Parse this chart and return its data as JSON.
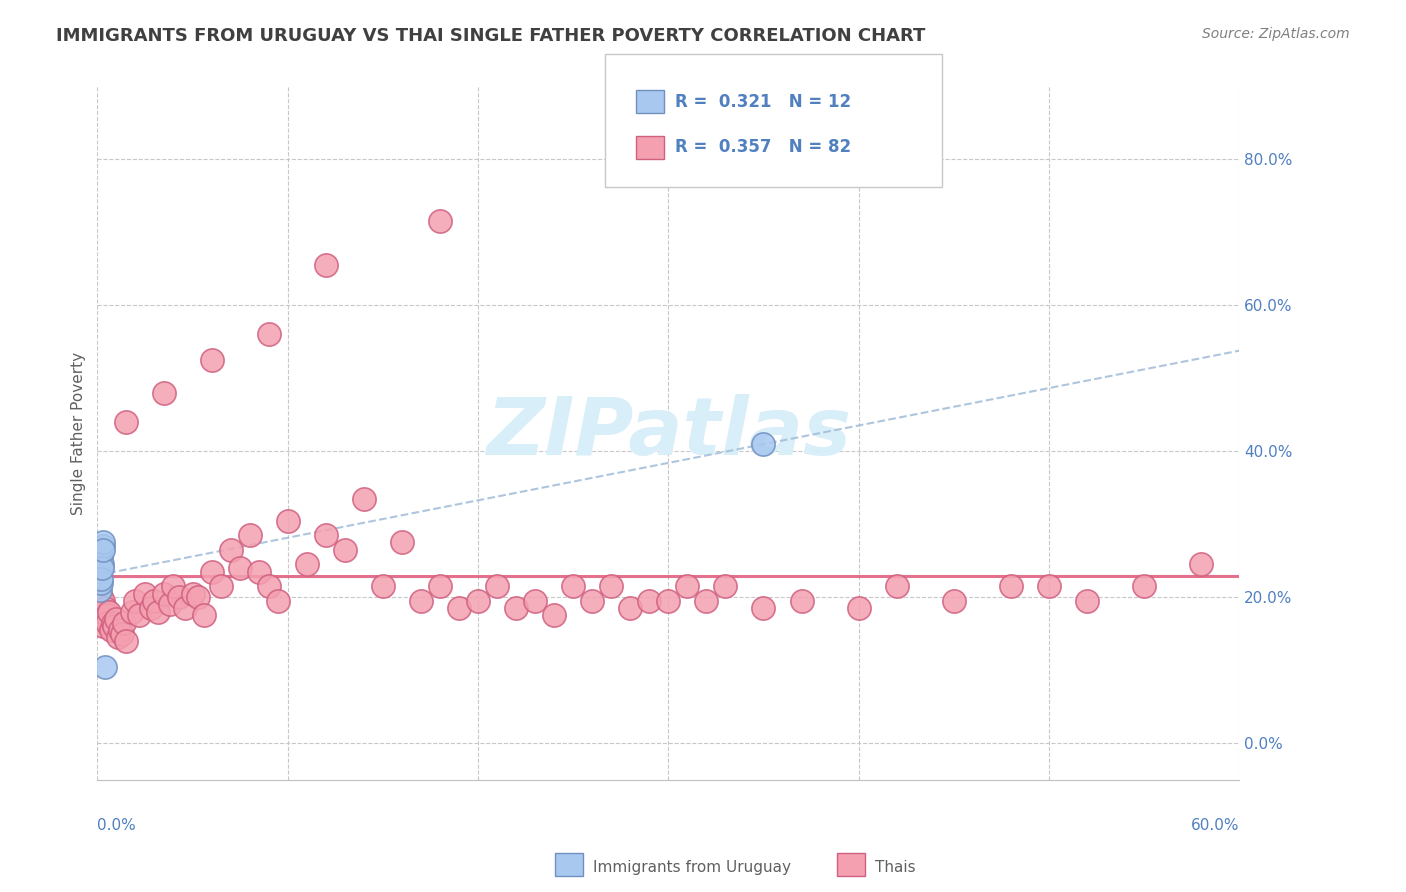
{
  "title": "IMMIGRANTS FROM URUGUAY VS THAI SINGLE FATHER POVERTY CORRELATION CHART",
  "source": "Source: ZipAtlas.com",
  "ylabel": "Single Father Poverty",
  "ytick_vals": [
    0.0,
    0.2,
    0.4,
    0.6,
    0.8
  ],
  "xlim": [
    0.0,
    0.6
  ],
  "ylim": [
    -0.05,
    0.9
  ],
  "uruguay_r": 0.321,
  "uruguay_n": 12,
  "thai_r": 0.357,
  "thai_n": 82,
  "uru_x": [
    0.001,
    0.002,
    0.0025,
    0.003,
    0.0015,
    0.002,
    0.0018,
    0.0022,
    0.003,
    0.0028,
    0.35,
    0.004
  ],
  "uru_y": [
    0.235,
    0.255,
    0.245,
    0.27,
    0.21,
    0.22,
    0.225,
    0.24,
    0.275,
    0.265,
    0.41,
    0.105
  ],
  "thai_x": [
    0.001,
    0.002,
    0.002,
    0.003,
    0.003,
    0.004,
    0.004,
    0.005,
    0.005,
    0.006,
    0.007,
    0.008,
    0.009,
    0.01,
    0.011,
    0.012,
    0.013,
    0.014,
    0.015,
    0.018,
    0.02,
    0.022,
    0.025,
    0.028,
    0.03,
    0.032,
    0.035,
    0.038,
    0.04,
    0.043,
    0.046,
    0.05,
    0.053,
    0.056,
    0.06,
    0.065,
    0.07,
    0.075,
    0.08,
    0.085,
    0.09,
    0.095,
    0.1,
    0.11,
    0.12,
    0.13,
    0.14,
    0.15,
    0.16,
    0.17,
    0.18,
    0.19,
    0.2,
    0.21,
    0.22,
    0.23,
    0.24,
    0.25,
    0.26,
    0.27,
    0.28,
    0.29,
    0.3,
    0.31,
    0.32,
    0.33,
    0.35,
    0.37,
    0.4,
    0.42,
    0.45,
    0.48,
    0.5,
    0.52,
    0.55,
    0.58,
    0.015,
    0.035,
    0.06,
    0.09,
    0.12,
    0.18
  ],
  "thai_y": [
    0.19,
    0.2,
    0.175,
    0.16,
    0.195,
    0.185,
    0.17,
    0.175,
    0.165,
    0.18,
    0.155,
    0.165,
    0.16,
    0.17,
    0.145,
    0.155,
    0.15,
    0.165,
    0.14,
    0.18,
    0.195,
    0.175,
    0.205,
    0.185,
    0.195,
    0.18,
    0.205,
    0.19,
    0.215,
    0.2,
    0.185,
    0.205,
    0.2,
    0.175,
    0.235,
    0.215,
    0.265,
    0.24,
    0.285,
    0.235,
    0.215,
    0.195,
    0.305,
    0.245,
    0.285,
    0.265,
    0.335,
    0.215,
    0.275,
    0.195,
    0.215,
    0.185,
    0.195,
    0.215,
    0.185,
    0.195,
    0.175,
    0.215,
    0.195,
    0.215,
    0.185,
    0.195,
    0.195,
    0.215,
    0.195,
    0.215,
    0.185,
    0.195,
    0.185,
    0.215,
    0.195,
    0.215,
    0.215,
    0.195,
    0.215,
    0.245,
    0.44,
    0.48,
    0.525,
    0.56,
    0.655,
    0.715
  ],
  "uruguay_color": "#a8c8f0",
  "thai_color": "#f4a0b0",
  "uruguay_edge": "#7090c0",
  "thai_edge": "#d06080",
  "trendline_thai_color": "#e06080",
  "trendline_uruguay_color": "#a0bcd8",
  "watermark_color": "#d8eef8",
  "background_color": "#ffffff",
  "grid_color": "#c8c8c8",
  "title_color": "#404040",
  "axis_label_color": "#5080c0",
  "legend_text_color": "#5080c0",
  "source_color": "#808080"
}
